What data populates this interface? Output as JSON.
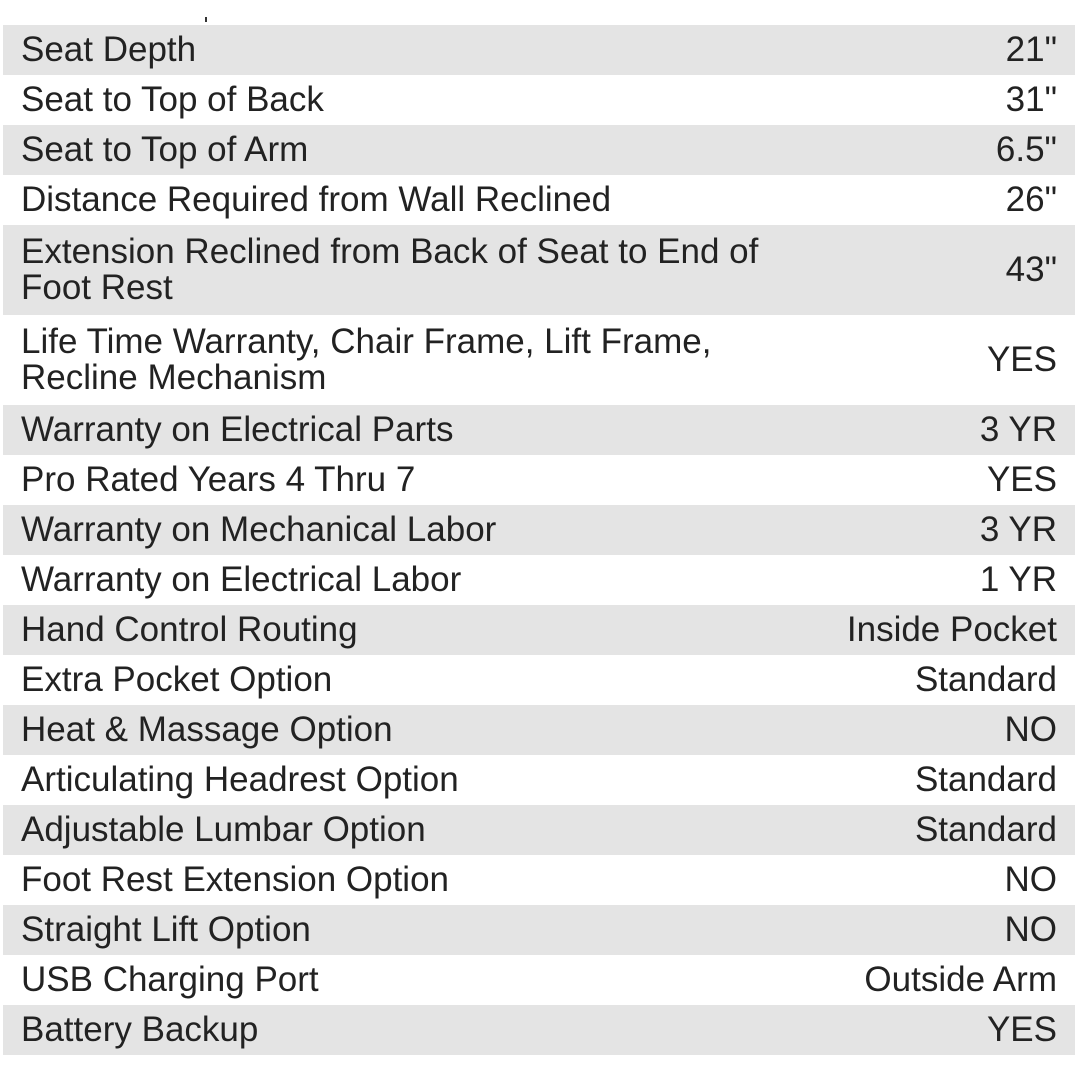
{
  "rows": [
    {
      "label": "Seat Depth",
      "value": "21\""
    },
    {
      "label": "Seat to Top of Back",
      "value": "31\""
    },
    {
      "label": "Seat to Top of Arm",
      "value": "6.5\""
    },
    {
      "label": "Distance Required from Wall Reclined",
      "value": "26\""
    },
    {
      "label": "Extension Reclined from Back of Seat to End of Foot Rest",
      "value": "43\""
    },
    {
      "label": "Life Time Warranty, Chair Frame, Lift Frame, Recline Mechanism",
      "value": "YES"
    },
    {
      "label": "Warranty on Electrical Parts",
      "value": "3 YR"
    },
    {
      "label": "Pro Rated Years 4 Thru 7",
      "value": "YES"
    },
    {
      "label": "Warranty on Mechanical Labor",
      "value": "3 YR"
    },
    {
      "label": "Warranty on Electrical Labor",
      "value": "1 YR"
    },
    {
      "label": "Hand Control Routing",
      "value": "Inside Pocket"
    },
    {
      "label": "Extra Pocket Option",
      "value": "Standard"
    },
    {
      "label": "Heat & Massage Option",
      "value": "NO"
    },
    {
      "label": "Articulating Headrest Option",
      "value": "Standard"
    },
    {
      "label": "Adjustable Lumbar Option",
      "value": "Standard"
    },
    {
      "label": "Foot Rest Extension Option",
      "value": "NO"
    },
    {
      "label": "Straight Lift Option",
      "value": "NO"
    },
    {
      "label": "USB Charging Port",
      "value": "Outside Arm"
    },
    {
      "label": "Battery Backup",
      "value": "YES"
    }
  ],
  "colors": {
    "stripe": "#e4e4e4",
    "text": "#222222"
  }
}
